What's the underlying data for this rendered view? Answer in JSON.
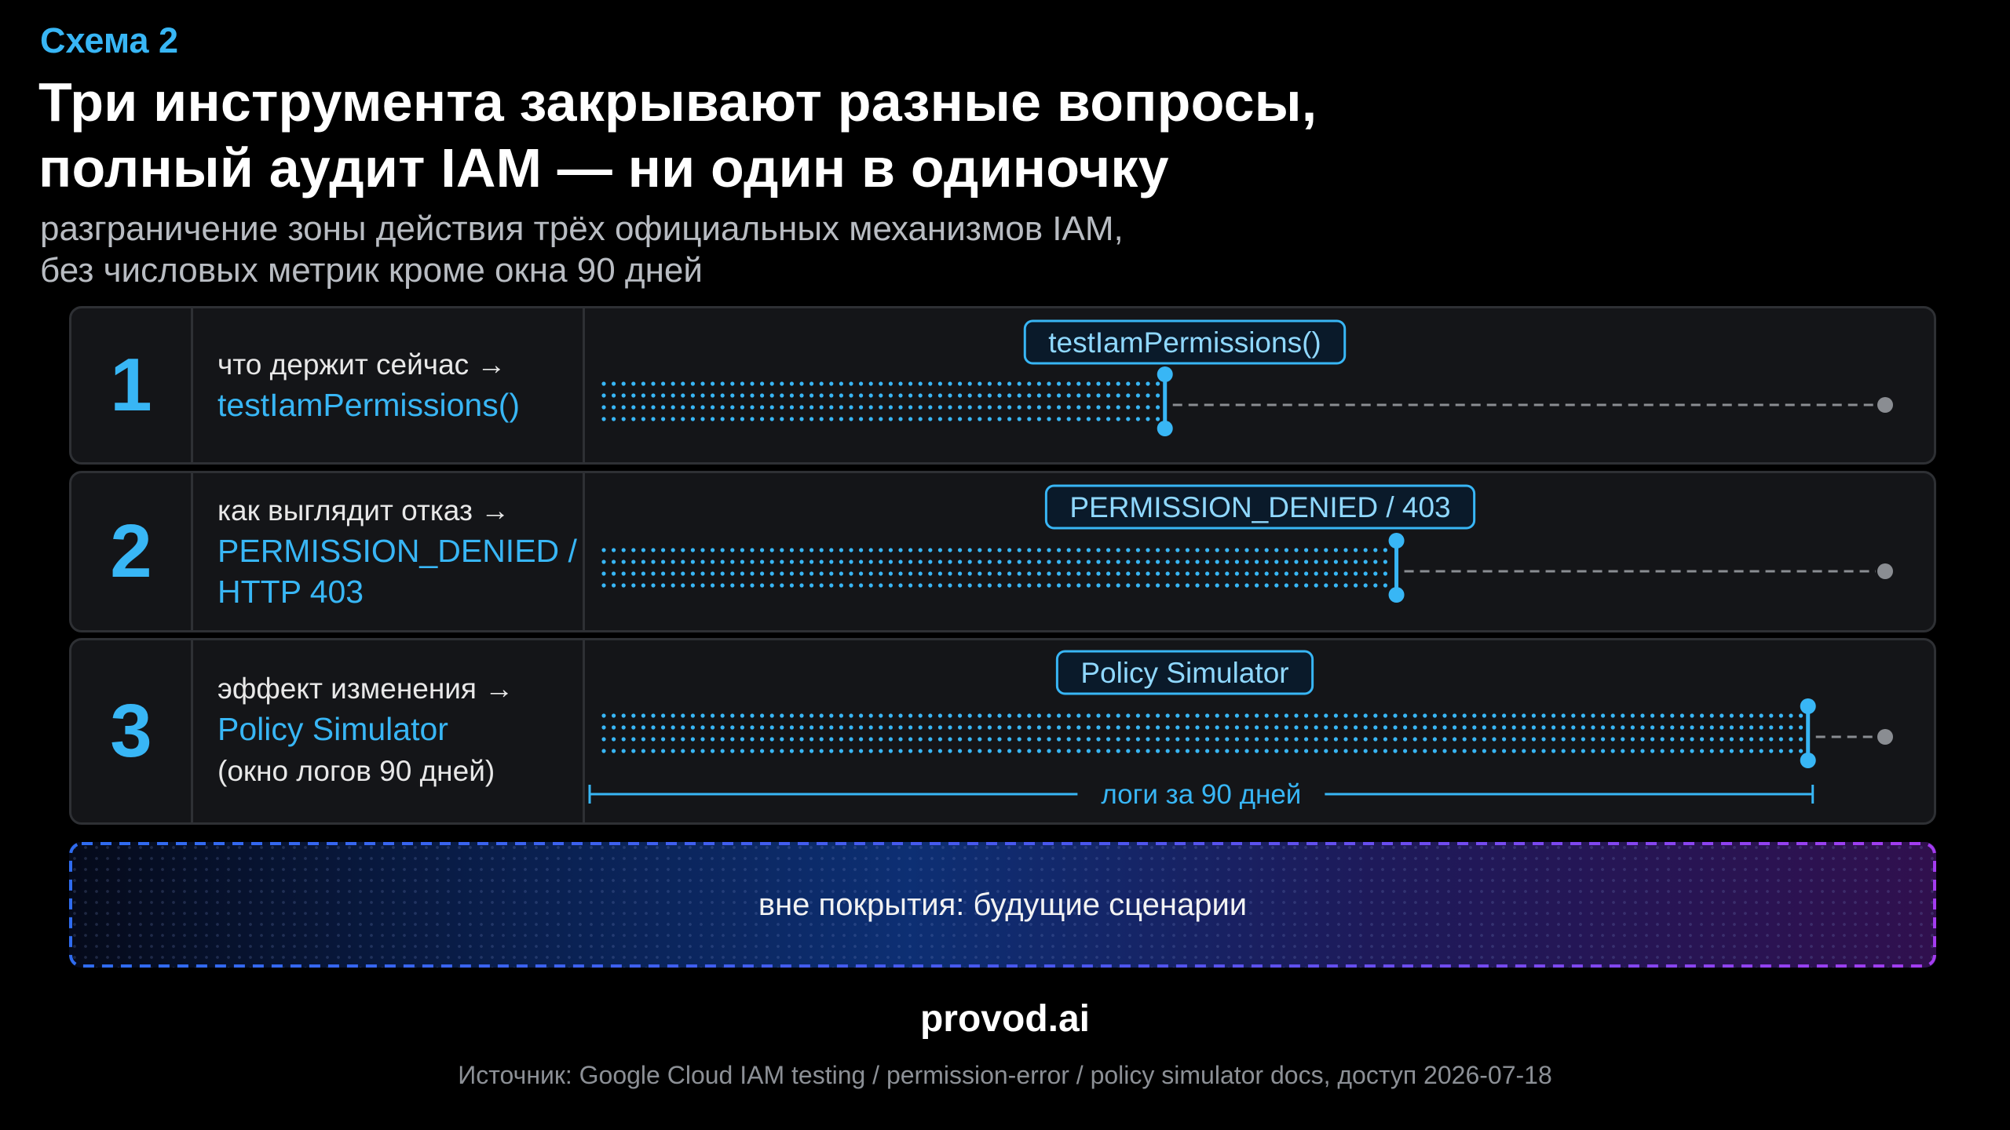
{
  "header": {
    "kicker": "Схема 2",
    "title_line1": "Три инструмента закрывают разные вопросы,",
    "title_line2": "полный аудит IAM — ни один в одиночку",
    "subtitle_line1": "разграничение зоны действия трёх официальных механизмов IAM,",
    "subtitle_line2": "без числовых метрик кроме окна 90 дней"
  },
  "rows": [
    {
      "number": "1",
      "question": "что держит сейчас →",
      "tool_line1": "testIamPermissions()",
      "tool_line2": "",
      "note": "",
      "bar_label": "testIamPermissions()",
      "coverage": 0.44
    },
    {
      "number": "2",
      "question": "как выглядит отказ →",
      "tool_line1": "PERMISSION_DENIED /",
      "tool_line2": "HTTP 403",
      "note": "",
      "bar_label": "PERMISSION_DENIED / 403",
      "coverage": 0.62
    },
    {
      "number": "3",
      "question": "эффект изменения →",
      "tool_line1": "Policy Simulator",
      "tool_line2": "",
      "note": "(окно логов 90 дней)",
      "bar_label": "Policy Simulator",
      "coverage": 0.94,
      "window_label": "логи за 90 дней"
    }
  ],
  "out_of_scope": {
    "label": "вне покрытия: будущие сценарии"
  },
  "footer": {
    "brand": "provod.ai",
    "source": "Источник: Google Cloud IAM testing / permission-error / policy simulator docs, доступ 2026-07-18"
  },
  "colors": {
    "accent": "#38b6f5",
    "background": "#000000",
    "card": "#141518",
    "gray_track": "#8a8d92"
  }
}
